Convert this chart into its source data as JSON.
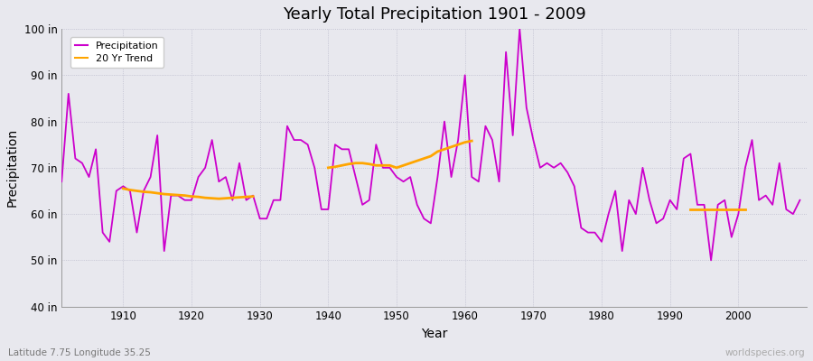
{
  "title": "Yearly Total Precipitation 1901 - 2009",
  "xlabel": "Year",
  "ylabel": "Precipitation",
  "bottom_left_label": "Latitude 7.75 Longitude 35.25",
  "bottom_right_label": "worldspecies.org",
  "ylim": [
    40,
    100
  ],
  "yticks": [
    40,
    50,
    60,
    70,
    80,
    90,
    100
  ],
  "ytick_labels": [
    "40 in",
    "50 in",
    "60 in",
    "70 in",
    "80 in",
    "90 in",
    "100 in"
  ],
  "xticks": [
    1910,
    1920,
    1930,
    1940,
    1950,
    1960,
    1970,
    1980,
    1990,
    2000
  ],
  "xlim": [
    1901,
    2010
  ],
  "precip_color": "#cc00cc",
  "trend_color": "#ffa500",
  "fig_bg_color": "#e8e8ee",
  "plot_bg_color": "#e8e8ee",
  "years": [
    1901,
    1902,
    1903,
    1904,
    1905,
    1906,
    1907,
    1908,
    1909,
    1910,
    1911,
    1912,
    1913,
    1914,
    1915,
    1916,
    1917,
    1918,
    1919,
    1920,
    1921,
    1922,
    1923,
    1924,
    1925,
    1926,
    1927,
    1928,
    1929,
    1930,
    1931,
    1932,
    1933,
    1934,
    1935,
    1936,
    1937,
    1938,
    1939,
    1940,
    1941,
    1942,
    1943,
    1944,
    1945,
    1946,
    1947,
    1948,
    1949,
    1950,
    1951,
    1952,
    1953,
    1954,
    1955,
    1956,
    1957,
    1958,
    1959,
    1960,
    1961,
    1962,
    1963,
    1964,
    1965,
    1966,
    1967,
    1968,
    1969,
    1970,
    1971,
    1972,
    1973,
    1974,
    1975,
    1976,
    1977,
    1978,
    1979,
    1980,
    1981,
    1982,
    1983,
    1984,
    1985,
    1986,
    1987,
    1988,
    1989,
    1990,
    1991,
    1992,
    1993,
    1994,
    1995,
    1996,
    1997,
    1998,
    1999,
    2000,
    2001,
    2002,
    2003,
    2004,
    2005,
    2006,
    2007,
    2008,
    2009
  ],
  "precipitation": [
    67,
    86,
    72,
    71,
    68,
    74,
    56,
    54,
    65,
    66,
    65,
    56,
    65,
    68,
    77,
    52,
    64,
    64,
    63,
    63,
    68,
    70,
    76,
    67,
    68,
    63,
    71,
    63,
    64,
    59,
    59,
    63,
    63,
    79,
    76,
    76,
    75,
    70,
    61,
    61,
    75,
    74,
    74,
    68,
    62,
    63,
    75,
    70,
    70,
    68,
    67,
    68,
    62,
    59,
    58,
    68,
    80,
    68,
    76,
    90,
    68,
    67,
    79,
    76,
    67,
    95,
    77,
    100,
    83,
    76,
    70,
    71,
    70,
    71,
    69,
    66,
    57,
    56,
    56,
    54,
    60,
    65,
    52,
    63,
    60,
    70,
    63,
    58,
    59,
    63,
    61,
    72,
    73,
    62,
    62,
    50,
    62,
    63,
    55,
    60,
    70,
    76,
    63,
    64,
    62,
    71,
    61,
    60,
    63
  ],
  "trend_seg1_years": [
    1910,
    1911,
    1912,
    1913,
    1914,
    1915,
    1916,
    1917,
    1918,
    1919,
    1920,
    1921,
    1922,
    1923,
    1924,
    1925,
    1926,
    1927,
    1928,
    1929
  ],
  "trend_seg1_values": [
    65.5,
    65.2,
    65.0,
    64.8,
    64.7,
    64.5,
    64.3,
    64.2,
    64.1,
    64.0,
    63.8,
    63.7,
    63.5,
    63.4,
    63.3,
    63.4,
    63.5,
    63.6,
    63.7,
    63.8
  ],
  "trend_seg2_years": [
    1940,
    1941,
    1942,
    1943,
    1944,
    1945,
    1946,
    1947,
    1948,
    1949,
    1950,
    1951,
    1952,
    1953,
    1954,
    1955,
    1956,
    1957,
    1958,
    1959,
    1960,
    1961
  ],
  "trend_seg2_values": [
    70.0,
    70.2,
    70.5,
    70.8,
    71.0,
    71.0,
    70.8,
    70.5,
    70.5,
    70.5,
    70.0,
    70.5,
    71.0,
    71.5,
    72.0,
    72.5,
    73.5,
    74.0,
    74.5,
    75.0,
    75.5,
    75.8
  ],
  "trend_seg3_years": [
    1993,
    1994,
    1995,
    1996,
    1997,
    1998,
    1999,
    2000,
    2001
  ],
  "trend_seg3_values": [
    61.0,
    61.0,
    61.0,
    61.0,
    61.0,
    61.0,
    61.0,
    61.0,
    61.0
  ]
}
